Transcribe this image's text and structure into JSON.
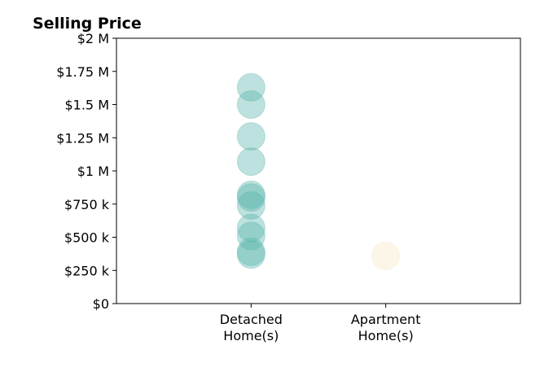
{
  "chart_data": {
    "type": "scatter",
    "title": "Selling Price",
    "xlabel": "",
    "ylabel": "",
    "categories": [
      "Detached\nHome(s)",
      "Apartment\nHome(s)"
    ],
    "xlim": [
      -1,
      2
    ],
    "ylim": [
      0,
      2000000
    ],
    "yticks": [
      {
        "value": 0,
        "label": "$0"
      },
      {
        "value": 250000,
        "label": "$250 k"
      },
      {
        "value": 500000,
        "label": "$500 k"
      },
      {
        "value": 750000,
        "label": "$750 k"
      },
      {
        "value": 1000000,
        "label": "$1 M"
      },
      {
        "value": 1250000,
        "label": "$1.25 M"
      },
      {
        "value": 1500000,
        "label": "$1.5 M"
      },
      {
        "value": 1750000,
        "label": "$1.75 M"
      },
      {
        "value": 2000000,
        "label": "$2 M"
      }
    ],
    "grid": false,
    "series": [
      {
        "category": "Detached\nHome(s)",
        "color": "#5ab4ac",
        "values": [
          1630000,
          1500000,
          1260000,
          1070000,
          820000,
          800000,
          740000,
          570000,
          510000,
          390000,
          370000
        ]
      },
      {
        "category": "Apartment\nHome(s)",
        "color": "#f6e8c3",
        "values": [
          360000
        ]
      }
    ]
  }
}
